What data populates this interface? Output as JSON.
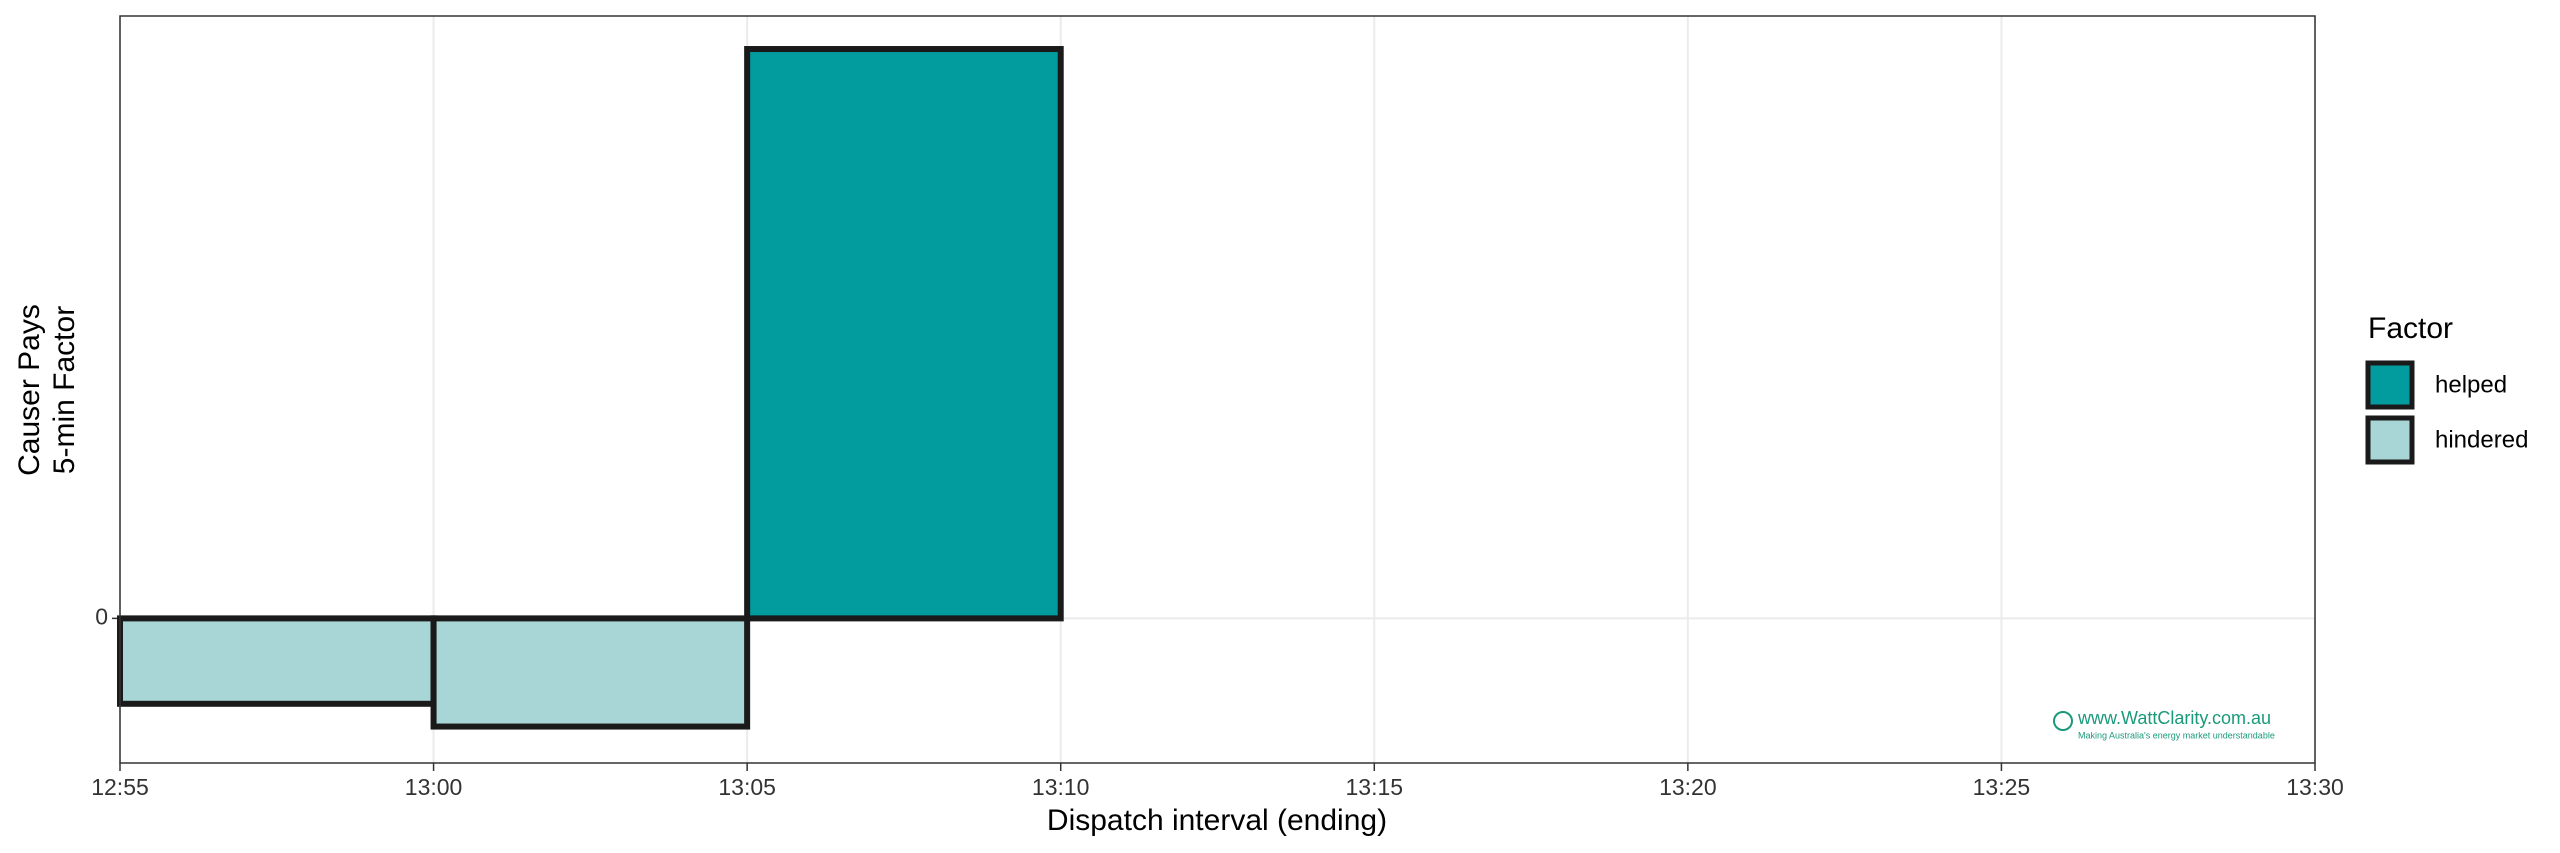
{
  "chart_data": {
    "type": "bar",
    "xlabel": "Dispatch interval (ending)",
    "ylabel": [
      "Causer Pays",
      "5-min Factor"
    ],
    "x": [
      "13:00",
      "13:05",
      "13:10"
    ],
    "series": [
      {
        "name": "helped",
        "color": "#029b9e",
        "values": [
          null,
          null,
          1
        ]
      },
      {
        "name": "hindered",
        "color": "#a8d5d5",
        "values": [
          -0.15,
          -0.19,
          null
        ]
      }
    ],
    "legend_title": "Factor",
    "legend": "right",
    "xlim": [
      "12:55",
      "13:30"
    ],
    "xticks": [
      "12:55",
      "13:00",
      "13:05",
      "13:10",
      "13:15",
      "13:20",
      "13:25",
      "13:30"
    ],
    "ylim": [
      -0.254,
      1.058
    ],
    "yticks": [
      0
    ],
    "grid": true,
    "watermark": {
      "site": "www.WattClarity.com.au",
      "tagline": "Making Australia's energy market understandable"
    }
  }
}
